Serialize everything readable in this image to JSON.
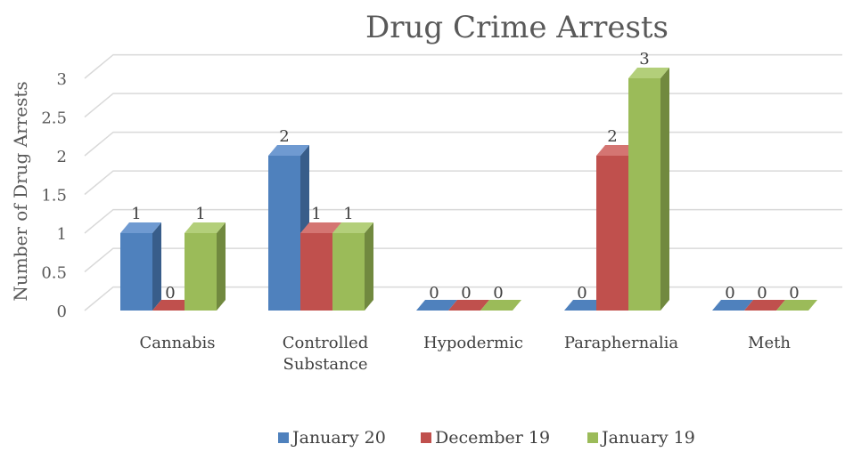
{
  "chart_data": {
    "type": "bar",
    "title": "Drug Crime Arrests",
    "ylabel": "Number of Drug Arrests",
    "ylim": [
      0,
      3
    ],
    "yticks": [
      "0",
      "0.5",
      "1",
      "1.5",
      "2",
      "2.5",
      "3"
    ],
    "categories": [
      "Cannabis",
      "Controlled Substance",
      "Hypodermic",
      "Paraphernalia",
      "Meth"
    ],
    "category_lines": [
      [
        "Cannabis"
      ],
      [
        "Controlled",
        "Substance"
      ],
      [
        "Hypodermic"
      ],
      [
        "Paraphernalia"
      ],
      [
        "Meth"
      ]
    ],
    "series": [
      {
        "name": "January 20",
        "values": [
          1,
          2,
          0,
          0,
          0
        ],
        "color": "#4F81BD",
        "side": "#385D8A",
        "top": "#6F9AD1"
      },
      {
        "name": "December 19",
        "values": [
          0,
          1,
          0,
          2,
          0
        ],
        "color": "#C0504D",
        "side": "#8C3836",
        "top": "#D47572"
      },
      {
        "name": "January 19",
        "values": [
          1,
          1,
          0,
          3,
          0
        ],
        "color": "#9BBB59",
        "side": "#71893F",
        "top": "#B3CF7A"
      }
    ],
    "grid": true,
    "legend": "bottom",
    "data_labels": true,
    "style": "3d-column"
  }
}
